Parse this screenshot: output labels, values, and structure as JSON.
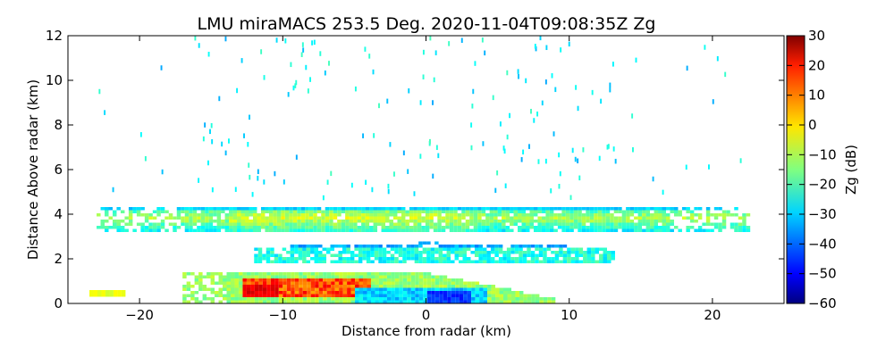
{
  "chart_data": {
    "type": "heatmap",
    "title": "LMU miraMACS 253.5 Deg. 2020-11-04T09:08:35Z  Zg",
    "xlabel": "Distance from radar (km)",
    "ylabel": "Distance Above radar  (km)",
    "xlim": [
      -25,
      25
    ],
    "ylim": [
      0,
      12
    ],
    "x_ticks": [
      -20,
      -10,
      0,
      10,
      20
    ],
    "y_ticks": [
      0,
      2,
      4,
      6,
      8,
      10,
      12
    ],
    "colorbar": {
      "label": "Zg (dB)",
      "range": [
        -60,
        30
      ],
      "ticks": [
        30,
        20,
        10,
        0,
        -10,
        -20,
        -30,
        -40,
        -50,
        -60
      ],
      "colormap": "jet"
    },
    "layers": [
      {
        "name": "upper cloud layer",
        "x_range": [
          -23,
          22.5
        ],
        "base_km": 3.2,
        "top_km": 4.3,
        "typical_dB": -15
      },
      {
        "name": "middle layer",
        "x_range": [
          -12,
          13
        ],
        "base_km": 1.8,
        "top_km": 2.6,
        "typical_dB": -25
      },
      {
        "name": "lower precipitation layer",
        "x_range": [
          -17,
          9
        ],
        "base_km": 0,
        "top_km": 1.3,
        "typical_dB": -5
      },
      {
        "name": "strong echo core",
        "x_range": [
          -13,
          -4
        ],
        "base_km": 0.2,
        "top_km": 0.9,
        "typical_dB": 18
      }
    ]
  }
}
